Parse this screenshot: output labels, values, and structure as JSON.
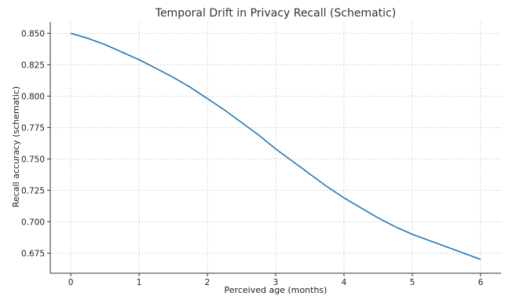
{
  "chart_data": {
    "type": "line",
    "title": "Temporal Drift in Privacy Recall (Schematic)",
    "xlabel": "Perceived age (months)",
    "ylabel": "Recall accuracy (schematic)",
    "xlim": [
      -0.3,
      6.3
    ],
    "ylim": [
      0.659,
      0.859
    ],
    "xticks": [
      0,
      1,
      2,
      3,
      4,
      5,
      6
    ],
    "xtick_labels": [
      "0",
      "1",
      "2",
      "3",
      "4",
      "5",
      "6"
    ],
    "yticks": [
      0.675,
      0.7,
      0.725,
      0.75,
      0.775,
      0.8,
      0.825,
      0.85
    ],
    "ytick_labels": [
      "0.675",
      "0.700",
      "0.725",
      "0.750",
      "0.775",
      "0.800",
      "0.825",
      "0.850"
    ],
    "grid": true,
    "series": [
      {
        "color": "#1f77b4",
        "x": [
          0,
          0.25,
          0.5,
          0.75,
          1,
          1.25,
          1.5,
          1.75,
          2,
          2.25,
          2.5,
          2.75,
          3,
          3.25,
          3.5,
          3.75,
          4,
          4.25,
          4.5,
          4.75,
          5,
          5.25,
          5.5,
          5.75,
          6
        ],
        "y": [
          0.85,
          0.846,
          0.841,
          0.835,
          0.829,
          0.822,
          0.815,
          0.807,
          0.798,
          0.789,
          0.779,
          0.769,
          0.758,
          0.748,
          0.738,
          0.728,
          0.719,
          0.711,
          0.703,
          0.696,
          0.69,
          0.685,
          0.68,
          0.675,
          0.67
        ]
      }
    ]
  }
}
